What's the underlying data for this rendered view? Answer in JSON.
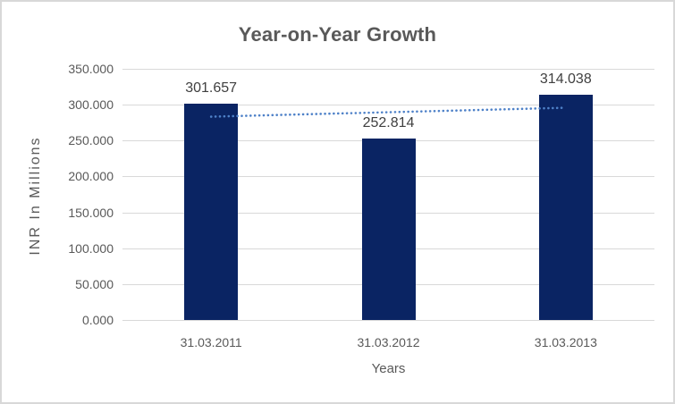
{
  "chart_data": {
    "type": "bar",
    "title": "Year-on-Year Growth",
    "categories": [
      "31.03.2011",
      "31.03.2012",
      "31.03.2013"
    ],
    "values": [
      301.657,
      252.814,
      314.038
    ],
    "data_labels": [
      "301.657",
      "252.814",
      "314.038"
    ],
    "xlabel": "Years",
    "ylabel": "INR In Millions",
    "ylim": [
      0,
      350
    ],
    "ytick_step": 50,
    "ytick_labels": [
      "0.000",
      "50.000",
      "100.000",
      "150.000",
      "200.000",
      "250.000",
      "300.000",
      "350.000"
    ],
    "grid": true,
    "legend": false,
    "bar_color": "#0A2463",
    "gridline_color": "#D9D9D9",
    "trendline": {
      "style": "dotted",
      "color": "#4E81C8",
      "start_value": 283.3,
      "end_value": 295.7
    }
  }
}
